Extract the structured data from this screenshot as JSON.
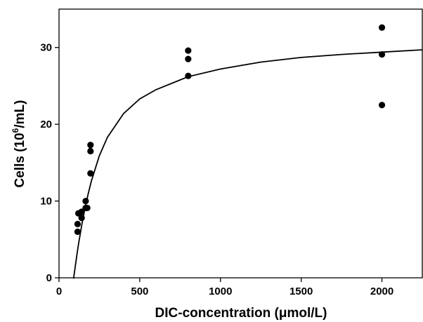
{
  "chart_data": {
    "type": "scatter",
    "title": "",
    "xlabel": "DIC-concentration (μmol/L)",
    "ylabel_parts": {
      "before": "Cells (10",
      "sup": "6",
      "after": "/mL)"
    },
    "xlim": [
      0,
      2250
    ],
    "ylim": [
      0,
      35
    ],
    "xticks": [
      0,
      500,
      1000,
      1500,
      2000
    ],
    "yticks": [
      0,
      10,
      20,
      30
    ],
    "grid": false,
    "legend": "none",
    "series": [
      {
        "kind": "points",
        "x": [
          115,
          115,
          120,
          140,
          140,
          165,
          165,
          175,
          195,
          195,
          195,
          800,
          800,
          800,
          2000,
          2000,
          2000
        ],
        "y": [
          6.0,
          7.0,
          8.4,
          7.8,
          8.6,
          9.1,
          10.0,
          9.1,
          13.6,
          16.5,
          17.3,
          26.3,
          28.5,
          29.6,
          22.5,
          29.1,
          32.6
        ]
      },
      {
        "kind": "fitted-curve",
        "x": [
          90,
          100,
          110,
          120,
          140,
          160,
          180,
          200,
          250,
          300,
          400,
          500,
          600,
          800,
          1000,
          1250,
          1500,
          1750,
          2000,
          2250
        ],
        "y": [
          -0.1,
          1.4,
          2.9,
          4.3,
          6.8,
          9.0,
          10.9,
          12.6,
          15.9,
          18.3,
          21.4,
          23.3,
          24.5,
          26.2,
          27.2,
          28.1,
          28.7,
          29.1,
          29.4,
          29.7
        ]
      }
    ]
  }
}
